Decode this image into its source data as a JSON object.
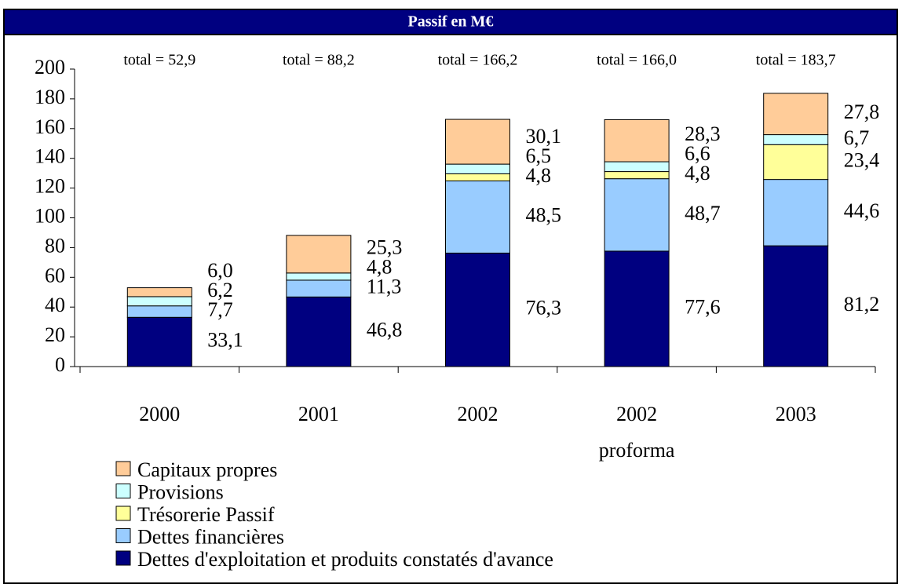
{
  "chart_data": {
    "type": "stacked_bar",
    "title": "Passif en M€",
    "categories": [
      "2000",
      "2001",
      "2002",
      "2002 proforma",
      "2003"
    ],
    "totals": [
      "total = 52,9",
      "total = 88,2",
      "total = 166,2",
      "total = 166,0",
      "total = 183,7"
    ],
    "series": [
      {
        "name": "Dettes d'exploitation et produits constatés d'avance",
        "color": "#000080",
        "values": [
          33.1,
          46.8,
          76.3,
          77.6,
          81.2
        ],
        "value_labels": [
          "33,1",
          "46,8",
          "76,3",
          "77,6",
          "81,2"
        ]
      },
      {
        "name": "Dettes financières",
        "color": "#99ccff",
        "values": [
          7.7,
          11.3,
          48.5,
          48.7,
          44.6
        ],
        "value_labels": [
          "7,7",
          "11,3",
          "48,5",
          "48,7",
          "44,6"
        ]
      },
      {
        "name": "Trésorerie Passif",
        "color": "#ffff99",
        "values": [
          null,
          null,
          4.8,
          4.8,
          23.4
        ],
        "value_labels": [
          null,
          null,
          "4,8",
          "4,8",
          "23,4"
        ]
      },
      {
        "name": "Provisions",
        "color": "#ccffff",
        "values": [
          6.2,
          4.8,
          6.5,
          6.6,
          6.7
        ],
        "value_labels": [
          "6,2",
          "4,8",
          "6,5",
          "6,6",
          "6,7"
        ]
      },
      {
        "name": "Capitaux propres",
        "color": "#ffcc99",
        "values": [
          6.0,
          25.3,
          30.1,
          28.3,
          27.8
        ],
        "value_labels": [
          "6,0",
          "25,3",
          "30,1",
          "28,3",
          "27,8"
        ]
      }
    ],
    "ylim": [
      0,
      200
    ],
    "yticks": [
      0,
      20,
      40,
      60,
      80,
      100,
      120,
      140,
      160,
      180,
      200
    ]
  }
}
